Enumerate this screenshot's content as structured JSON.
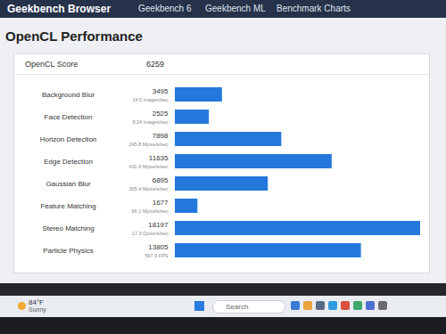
{
  "page": {
    "brand": "Geekbench Browser",
    "nav": [
      "Geekbench 6",
      "Geekbench ML",
      "Benchmark Charts"
    ],
    "taskbar": {
      "temperature": "84°F",
      "weather": "Sunny",
      "search": "Search"
    }
  },
  "chart_data": {
    "type": "bar",
    "orientation": "horizontal",
    "title": "OpenCL Performance",
    "annotations": {
      "score_label": "OpenCL Score",
      "score": 6259
    },
    "categories": [
      "Background Blur",
      "Face Detection",
      "Horizon Detection",
      "Edge Detection",
      "Gaussian Blur",
      "Feature Matching",
      "Stereo Matching",
      "Particle Physics"
    ],
    "values": [
      3495,
      2525,
      7898,
      11635,
      6895,
      1677,
      18197,
      13805
    ],
    "value_details": [
      "14.5 images/sec",
      "8.24 images/sec",
      "245.8 Mpixels/sec",
      "431.6 Mpixels/sec",
      "305.4 Mpixels/sec",
      "66.1 Mpixels/sec",
      "17.3 Gpixels/sec",
      "567.6 FPS"
    ],
    "color": "#2478dc",
    "xlim": [
      0,
      18197
    ],
    "data_labels": true,
    "tick_labels": false,
    "grid": false
  }
}
